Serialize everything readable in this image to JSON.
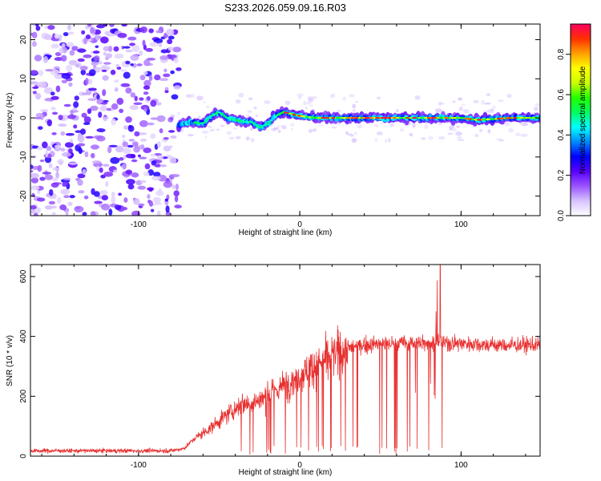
{
  "figure": {
    "title": "S233.2026.059.09.16.R03"
  },
  "chart_data": [
    {
      "type": "heatmap",
      "xlabel": "Height of straight line (km)",
      "ylabel": "Frequency (Hz)",
      "xlim": [
        -167,
        149
      ],
      "ylim": [
        -25,
        24
      ],
      "xticks": [
        -100,
        0,
        100
      ],
      "yticks": [
        -20,
        -10,
        0,
        10,
        20
      ],
      "grid": false,
      "colorbar": {
        "label": "Normalized spectral amplitude",
        "range": [
          0,
          0.95
        ],
        "ticks": [
          0.0,
          0.2,
          0.4,
          0.6,
          0.8
        ],
        "colors": [
          "#ffffff",
          "#d7c3ff",
          "#9a55ff",
          "#5a00ff",
          "#0000ff",
          "#0088ff",
          "#00ffff",
          "#00ff60",
          "#22ff00",
          "#ccff00",
          "#ffff00",
          "#ffa000",
          "#ff3000",
          "#ff0060"
        ]
      },
      "signal_track": [
        {
          "x": -75,
          "y": -2.0
        },
        {
          "x": -68,
          "y": -1.0
        },
        {
          "x": -60,
          "y": -1.5
        },
        {
          "x": -55,
          "y": 0.5
        },
        {
          "x": -50,
          "y": 1.5
        },
        {
          "x": -45,
          "y": 0.0
        },
        {
          "x": -40,
          "y": -0.5
        },
        {
          "x": -35,
          "y": -1.0
        },
        {
          "x": -30,
          "y": -1.0
        },
        {
          "x": -25,
          "y": -2.5
        },
        {
          "x": -20,
          "y": -1.5
        },
        {
          "x": -15,
          "y": 0.5
        },
        {
          "x": -10,
          "y": 1.5
        },
        {
          "x": -5,
          "y": 1.0
        },
        {
          "x": 0,
          "y": 0.5
        },
        {
          "x": 10,
          "y": 0.0
        },
        {
          "x": 20,
          "y": 0.0
        },
        {
          "x": 40,
          "y": 0.0
        },
        {
          "x": 60,
          "y": 0.0
        },
        {
          "x": 80,
          "y": 0.0
        },
        {
          "x": 100,
          "y": 0.0
        },
        {
          "x": 110,
          "y": -0.5
        },
        {
          "x": 120,
          "y": -0.3
        },
        {
          "x": 130,
          "y": 0.0
        },
        {
          "x": 140,
          "y": 0.0
        },
        {
          "x": 149,
          "y": 0.0
        }
      ],
      "noise_region": {
        "x_start": -167,
        "x_end": -75
      }
    },
    {
      "type": "line",
      "xlabel": "Height of straight line (km)",
      "ylabel": "SNR (10 * v/v)",
      "xlim": [
        -167,
        149
      ],
      "ylim": [
        0,
        640
      ],
      "xticks": [
        -100,
        0,
        100
      ],
      "yticks": [
        0,
        200,
        400,
        600
      ],
      "grid": false,
      "color": "#e83030",
      "envelope": [
        {
          "x": -167,
          "y": 18
        },
        {
          "x": -80,
          "y": 18
        },
        {
          "x": -72,
          "y": 25
        },
        {
          "x": -65,
          "y": 60
        },
        {
          "x": -55,
          "y": 95
        },
        {
          "x": -45,
          "y": 140
        },
        {
          "x": -35,
          "y": 175
        },
        {
          "x": -25,
          "y": 185
        },
        {
          "x": -15,
          "y": 220
        },
        {
          "x": -5,
          "y": 250
        },
        {
          "x": 5,
          "y": 290
        },
        {
          "x": 15,
          "y": 320
        },
        {
          "x": 25,
          "y": 350
        },
        {
          "x": 35,
          "y": 368
        },
        {
          "x": 50,
          "y": 375
        },
        {
          "x": 70,
          "y": 378
        },
        {
          "x": 85,
          "y": 380
        },
        {
          "x": 100,
          "y": 378
        },
        {
          "x": 115,
          "y": 372
        },
        {
          "x": 130,
          "y": 370
        },
        {
          "x": 149,
          "y": 372
        }
      ],
      "peak": {
        "x": 87,
        "y": 640
      }
    }
  ]
}
